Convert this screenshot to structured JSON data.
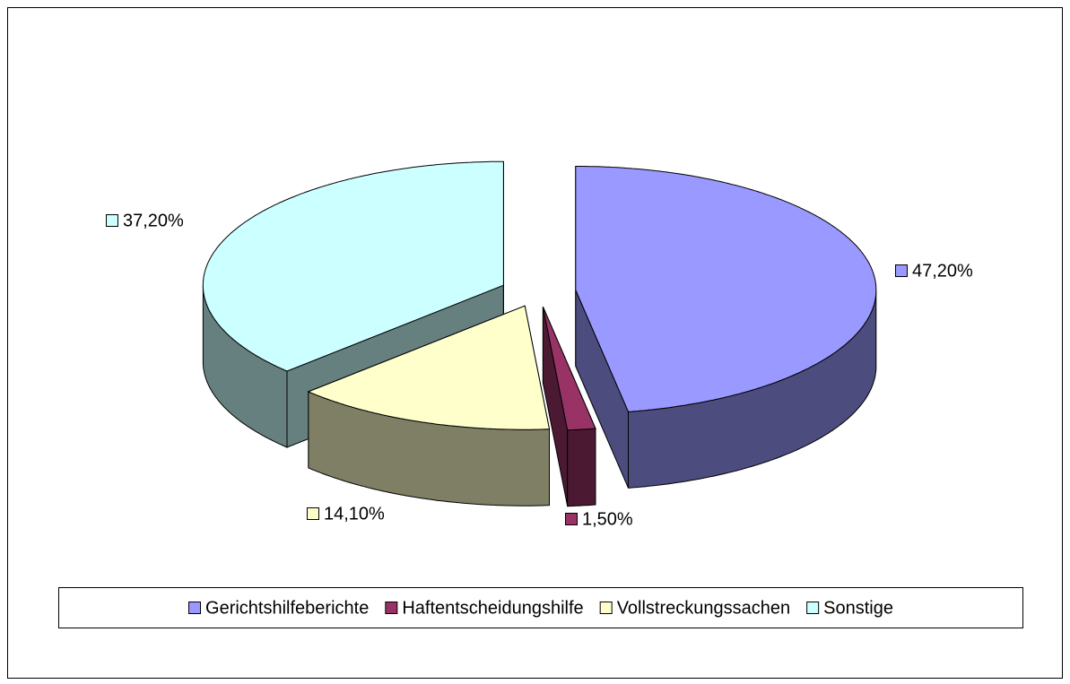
{
  "chart_data": {
    "type": "pie",
    "categories": [
      "Gerichtshilfeberichte",
      "Haftentscheidungshilfe",
      "Vollstreckungssachen",
      "Sonstige"
    ],
    "values": [
      47.2,
      1.5,
      14.1,
      37.2
    ],
    "value_labels": [
      "47,20%",
      "1,50%",
      "14,10%",
      "37,20%"
    ],
    "colors": [
      "#9999ff",
      "#993366",
      "#ffffcc",
      "#ccffff"
    ],
    "legend": "bottom"
  }
}
